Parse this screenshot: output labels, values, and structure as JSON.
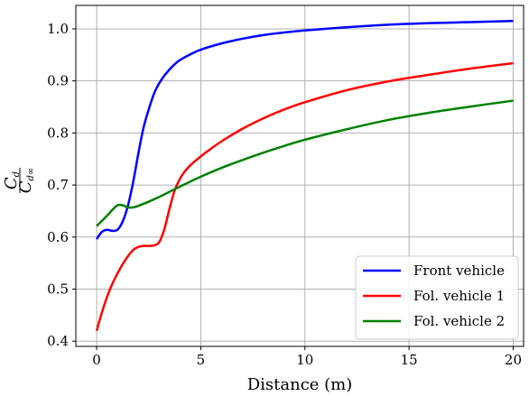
{
  "chart_data": {
    "type": "line",
    "xlabel": "Distance (m)",
    "ylabel": {
      "numerator": "C",
      "numerator_sub": "d",
      "denominator": "C",
      "denominator_sub": "d∞"
    },
    "xlim": [
      -1,
      20.5
    ],
    "ylim": [
      0.39,
      1.045
    ],
    "xticks": [
      0,
      5,
      10,
      15,
      20
    ],
    "yticks": [
      0.4,
      0.5,
      0.6,
      0.7,
      0.8,
      0.9,
      1.0
    ],
    "xtick_labels": [
      "0",
      "5",
      "10",
      "15",
      "20"
    ],
    "ytick_labels": [
      "0.4",
      "0.5",
      "0.6",
      "0.7",
      "0.8",
      "0.9",
      "1.0"
    ],
    "grid": true,
    "legend_position": "lower-right",
    "series": [
      {
        "name": "Front vehicle",
        "color": "#0000ff",
        "x": [
          0,
          0.25,
          0.5,
          0.75,
          1.0,
          1.25,
          1.5,
          1.75,
          2.0,
          2.25,
          2.5,
          2.75,
          3.0,
          3.25,
          3.5,
          3.75,
          4.0,
          4.5,
          5.0,
          6.0,
          7.0,
          8.0,
          9.0,
          10.0,
          12.0,
          14.0,
          16.0,
          18.0,
          20.0
        ],
        "y": [
          0.596,
          0.61,
          0.614,
          0.612,
          0.614,
          0.63,
          0.66,
          0.705,
          0.76,
          0.81,
          0.845,
          0.875,
          0.895,
          0.91,
          0.922,
          0.932,
          0.94,
          0.951,
          0.96,
          0.972,
          0.981,
          0.988,
          0.993,
          0.997,
          1.003,
          1.008,
          1.011,
          1.013,
          1.015
        ]
      },
      {
        "name": "Fol. vehicle 1",
        "color": "#ff0000",
        "x": [
          0,
          0.25,
          0.5,
          0.75,
          1.0,
          1.25,
          1.5,
          1.75,
          2.0,
          2.25,
          2.5,
          2.75,
          3.0,
          3.25,
          3.5,
          3.75,
          4.0,
          4.25,
          4.5,
          5.0,
          5.5,
          6.0,
          7.0,
          8.0,
          9.0,
          10.0,
          12.0,
          14.0,
          16.0,
          18.0,
          20.0
        ],
        "y": [
          0.42,
          0.455,
          0.485,
          0.51,
          0.53,
          0.548,
          0.563,
          0.575,
          0.581,
          0.583,
          0.583,
          0.584,
          0.59,
          0.615,
          0.655,
          0.69,
          0.712,
          0.727,
          0.738,
          0.755,
          0.77,
          0.784,
          0.808,
          0.828,
          0.845,
          0.859,
          0.882,
          0.899,
          0.912,
          0.924,
          0.934
        ]
      },
      {
        "name": "Fol. vehicle 2",
        "color": "#008000",
        "x": [
          0,
          0.25,
          0.5,
          0.75,
          1.0,
          1.25,
          1.5,
          1.75,
          2.0,
          2.5,
          3.0,
          3.5,
          4.0,
          5.0,
          6.0,
          7.0,
          8.0,
          9.0,
          10.0,
          12.0,
          14.0,
          16.0,
          18.0,
          20.0
        ],
        "y": [
          0.621,
          0.631,
          0.641,
          0.652,
          0.661,
          0.661,
          0.657,
          0.657,
          0.66,
          0.668,
          0.677,
          0.687,
          0.697,
          0.716,
          0.733,
          0.748,
          0.762,
          0.775,
          0.787,
          0.807,
          0.825,
          0.839,
          0.851,
          0.862
        ]
      }
    ]
  }
}
